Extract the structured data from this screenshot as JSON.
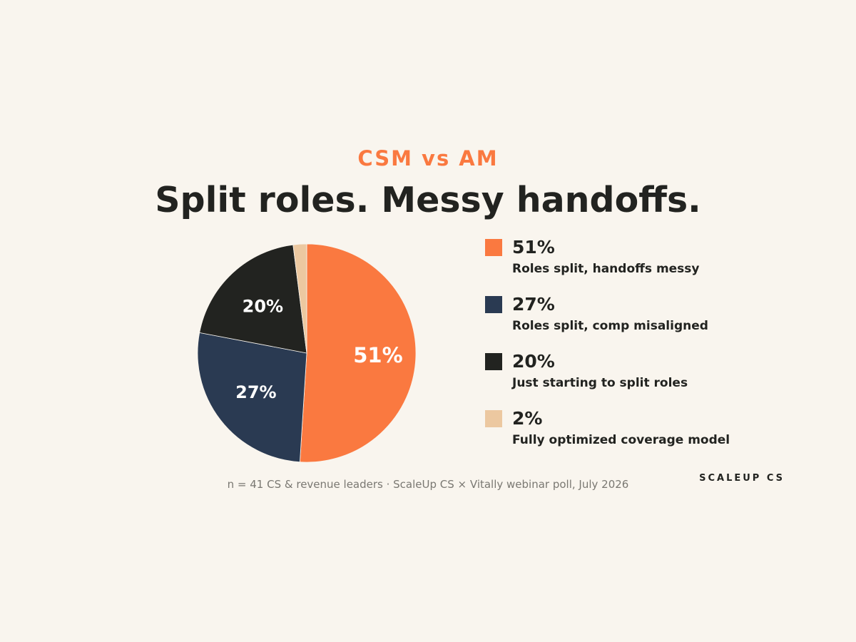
{
  "header": {
    "kicker": "CSM vs AM",
    "title": "Split roles. Messy handoffs."
  },
  "chart_data": {
    "type": "pie",
    "start": "top (12 o'clock), clockwise",
    "slices": [
      {
        "value": 51,
        "label": "51%",
        "description": "Roles split, handoffs messy",
        "color": "#fa7940"
      },
      {
        "value": 27,
        "label": "27%",
        "description": "Roles split, comp misaligned",
        "color": "#2a3a52"
      },
      {
        "value": 20,
        "label": "20%",
        "description": "Just starting to split roles",
        "color": "#222320"
      },
      {
        "value": 2,
        "label": "2%",
        "description": "Fully optimized coverage model",
        "color": "#ecc8a0"
      }
    ],
    "legend_position": "right"
  },
  "footnote": "n = 41 CS & revenue leaders · ScaleUp CS × Vitally webinar poll, July 2026",
  "brand": "SCALEUP CS"
}
